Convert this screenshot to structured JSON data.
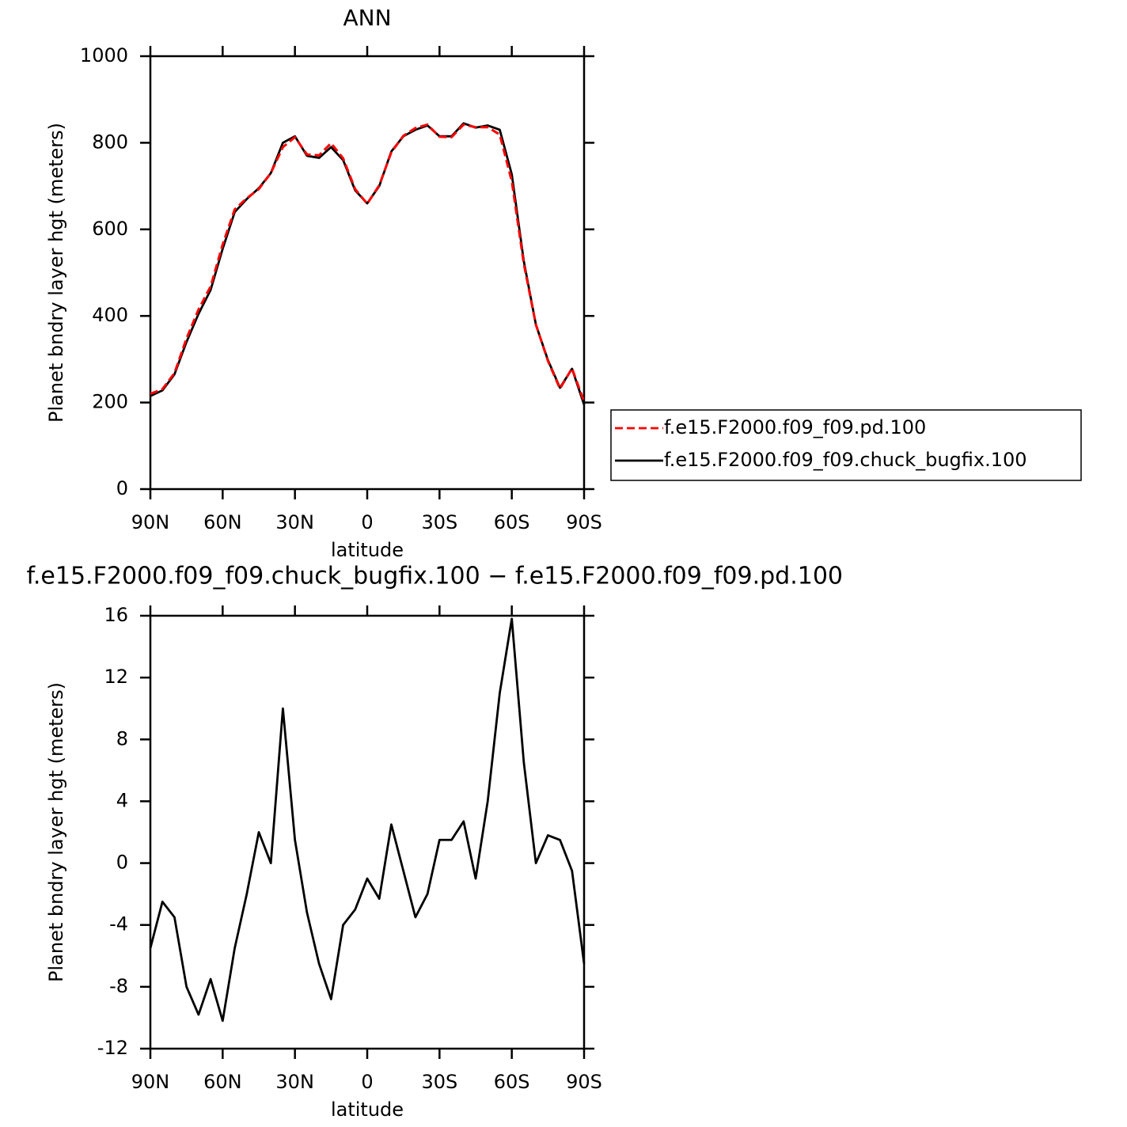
{
  "chart_data": [
    {
      "type": "line",
      "title": "ANN",
      "xlabel": "latitude",
      "ylabel": "Planet bndry layer hgt (meters)",
      "x": [
        90,
        85,
        80,
        75,
        70,
        65,
        60,
        55,
        50,
        45,
        40,
        35,
        30,
        25,
        20,
        15,
        10,
        5,
        0,
        -5,
        -10,
        -15,
        -20,
        -25,
        -30,
        -35,
        -40,
        -45,
        -50,
        -55,
        -60,
        -65,
        -70,
        -75,
        -80,
        -85,
        -90
      ],
      "series": [
        {
          "name": "f.e15.F2000.f09_f09.pd.100",
          "color": "#ff0000",
          "linestyle": "dashed",
          "values": [
            220,
            231,
            268,
            348,
            415,
            468,
            565,
            646,
            672,
            693,
            730,
            790,
            813,
            773,
            771,
            799,
            764,
            693,
            659,
            702,
            778,
            816,
            834,
            842,
            814,
            813,
            842,
            836,
            836,
            819,
            711,
            520,
            380,
            296,
            232,
            279,
            202
          ]
        },
        {
          "name": "f.e15.F2000.f09_f09.chuck_bugfix.100",
          "color": "#000000",
          "linestyle": "solid",
          "values": [
            215,
            228,
            265,
            340,
            405,
            460,
            555,
            640,
            670,
            695,
            730,
            800,
            815,
            770,
            765,
            790,
            760,
            690,
            660,
            700,
            780,
            815,
            830,
            840,
            815,
            815,
            845,
            835,
            840,
            830,
            727,
            526,
            380,
            298,
            234,
            278,
            195
          ]
        }
      ],
      "xlim": [
        90,
        -90
      ],
      "ylim": [
        0,
        1000
      ],
      "xticks": [
        {
          "value": 90,
          "label": "90N"
        },
        {
          "value": 60,
          "label": "60N"
        },
        {
          "value": 30,
          "label": "30N"
        },
        0,
        {
          "value": -30,
          "label": "30S"
        },
        {
          "value": -60,
          "label": "60S"
        },
        {
          "value": -90,
          "label": "90S"
        }
      ],
      "yticks": [
        0,
        200,
        400,
        600,
        800,
        1000
      ],
      "legend": "outside-right"
    },
    {
      "type": "line",
      "title": "f.e15.F2000.f09_f09.chuck_bugfix.100 − f.e15.F2000.f09_f09.pd.100",
      "xlabel": "latitude",
      "ylabel": "Planet bndry layer hgt (meters)",
      "x": [
        90,
        85,
        80,
        75,
        70,
        65,
        60,
        55,
        50,
        45,
        40,
        35,
        30,
        25,
        20,
        15,
        10,
        5,
        0,
        -5,
        -10,
        -15,
        -20,
        -25,
        -30,
        -35,
        -40,
        -45,
        -50,
        -55,
        -60,
        -65,
        -70,
        -75,
        -80,
        -85,
        -90
      ],
      "series": [
        {
          "color": "#000000",
          "linestyle": "solid",
          "values": [
            -5.5,
            -2.5,
            -3.5,
            -8,
            -9.8,
            -7.5,
            -10.2,
            -5.5,
            -2,
            2,
            0,
            10,
            1.5,
            -3.2,
            -6.5,
            -8.8,
            -4,
            -3,
            -1,
            -2.3,
            2.5,
            -0.5,
            -3.5,
            -2,
            1.5,
            1.5,
            2.7,
            -1,
            4,
            11,
            15.8,
            6.5,
            0,
            1.8,
            1.5,
            -0.5,
            -6.5
          ]
        }
      ],
      "xlim": [
        90,
        -90
      ],
      "ylim": [
        -12,
        16
      ],
      "xticks": [
        {
          "value": 90,
          "label": "90N"
        },
        {
          "value": 60,
          "label": "60N"
        },
        {
          "value": 30,
          "label": "30N"
        },
        0,
        {
          "value": -30,
          "label": "30S"
        },
        {
          "value": -60,
          "label": "60S"
        },
        {
          "value": -90,
          "label": "90S"
        }
      ],
      "yticks": [
        -12,
        -8,
        -4,
        0,
        4,
        8,
        12,
        16
      ]
    }
  ]
}
